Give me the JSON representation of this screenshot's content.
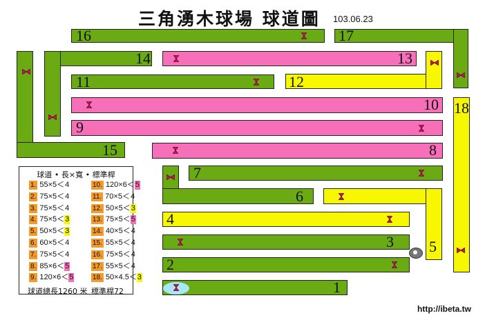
{
  "title": "三角湧木球場 球道圖",
  "date": "103.06.23",
  "url": "http://ibeta.tw",
  "colors": {
    "green": "#6aaa13",
    "pink": "#f66fb8",
    "yellow": "#f7f700",
    "orange": "#f39a2a",
    "tee_blue": "#a9e7f7"
  },
  "lanes": [
    {
      "no": "1",
      "color": "green"
    },
    {
      "no": "2",
      "color": "green"
    },
    {
      "no": "3",
      "color": "green"
    },
    {
      "no": "4",
      "color": "yellow"
    },
    {
      "no": "5",
      "color": "yellow"
    },
    {
      "no": "6",
      "color": "green"
    },
    {
      "no": "7",
      "color": "green"
    },
    {
      "no": "8",
      "color": "pink"
    },
    {
      "no": "9",
      "color": "pink"
    },
    {
      "no": "10",
      "color": "pink"
    },
    {
      "no": "11",
      "color": "green"
    },
    {
      "no": "12",
      "color": "yellow"
    },
    {
      "no": "13",
      "color": "pink"
    },
    {
      "no": "14",
      "color": "green"
    },
    {
      "no": "15",
      "color": "green"
    },
    {
      "no": "16",
      "color": "green"
    },
    {
      "no": "17",
      "color": "green"
    },
    {
      "no": "18",
      "color": "yellow"
    }
  ],
  "legend": {
    "header": "球道 • 長×寬 • 標準桿",
    "rows": [
      {
        "no": "1.",
        "dims": "55×5＜",
        "par": "4"
      },
      {
        "no": "2.",
        "dims": "75×5＜",
        "par": "4"
      },
      {
        "no": "3.",
        "dims": "75×5＜",
        "par": "4"
      },
      {
        "no": "4.",
        "dims": "75×5＜",
        "par": "3"
      },
      {
        "no": "5.",
        "dims": "50×5＜",
        "par": "3"
      },
      {
        "no": "6.",
        "dims": "60×5＜",
        "par": "4"
      },
      {
        "no": "7.",
        "dims": "75×5＜",
        "par": "4"
      },
      {
        "no": "8.",
        "dims": "85×6＜",
        "par": "5"
      },
      {
        "no": "9.",
        "dims": "120×6＜",
        "par": "5"
      },
      {
        "no": "10.",
        "dims": "120×6＜",
        "par": "5"
      },
      {
        "no": "11.",
        "dims": "70×5＜",
        "par": "4"
      },
      {
        "no": "12.",
        "dims": "50×5＜",
        "par": "3"
      },
      {
        "no": "13.",
        "dims": "75×5＜",
        "par": "5"
      },
      {
        "no": "14.",
        "dims": "40×5＜",
        "par": "4"
      },
      {
        "no": "15.",
        "dims": "55×5＜",
        "par": "4"
      },
      {
        "no": "16.",
        "dims": "75×5＜",
        "par": "4"
      },
      {
        "no": "17.",
        "dims": "55×5＜",
        "par": "4"
      },
      {
        "no": "18.",
        "dims": "50×4.5＜",
        "par": "3"
      }
    ],
    "total_length": "球道總長1260 米",
    "total_par": "標準桿72"
  }
}
